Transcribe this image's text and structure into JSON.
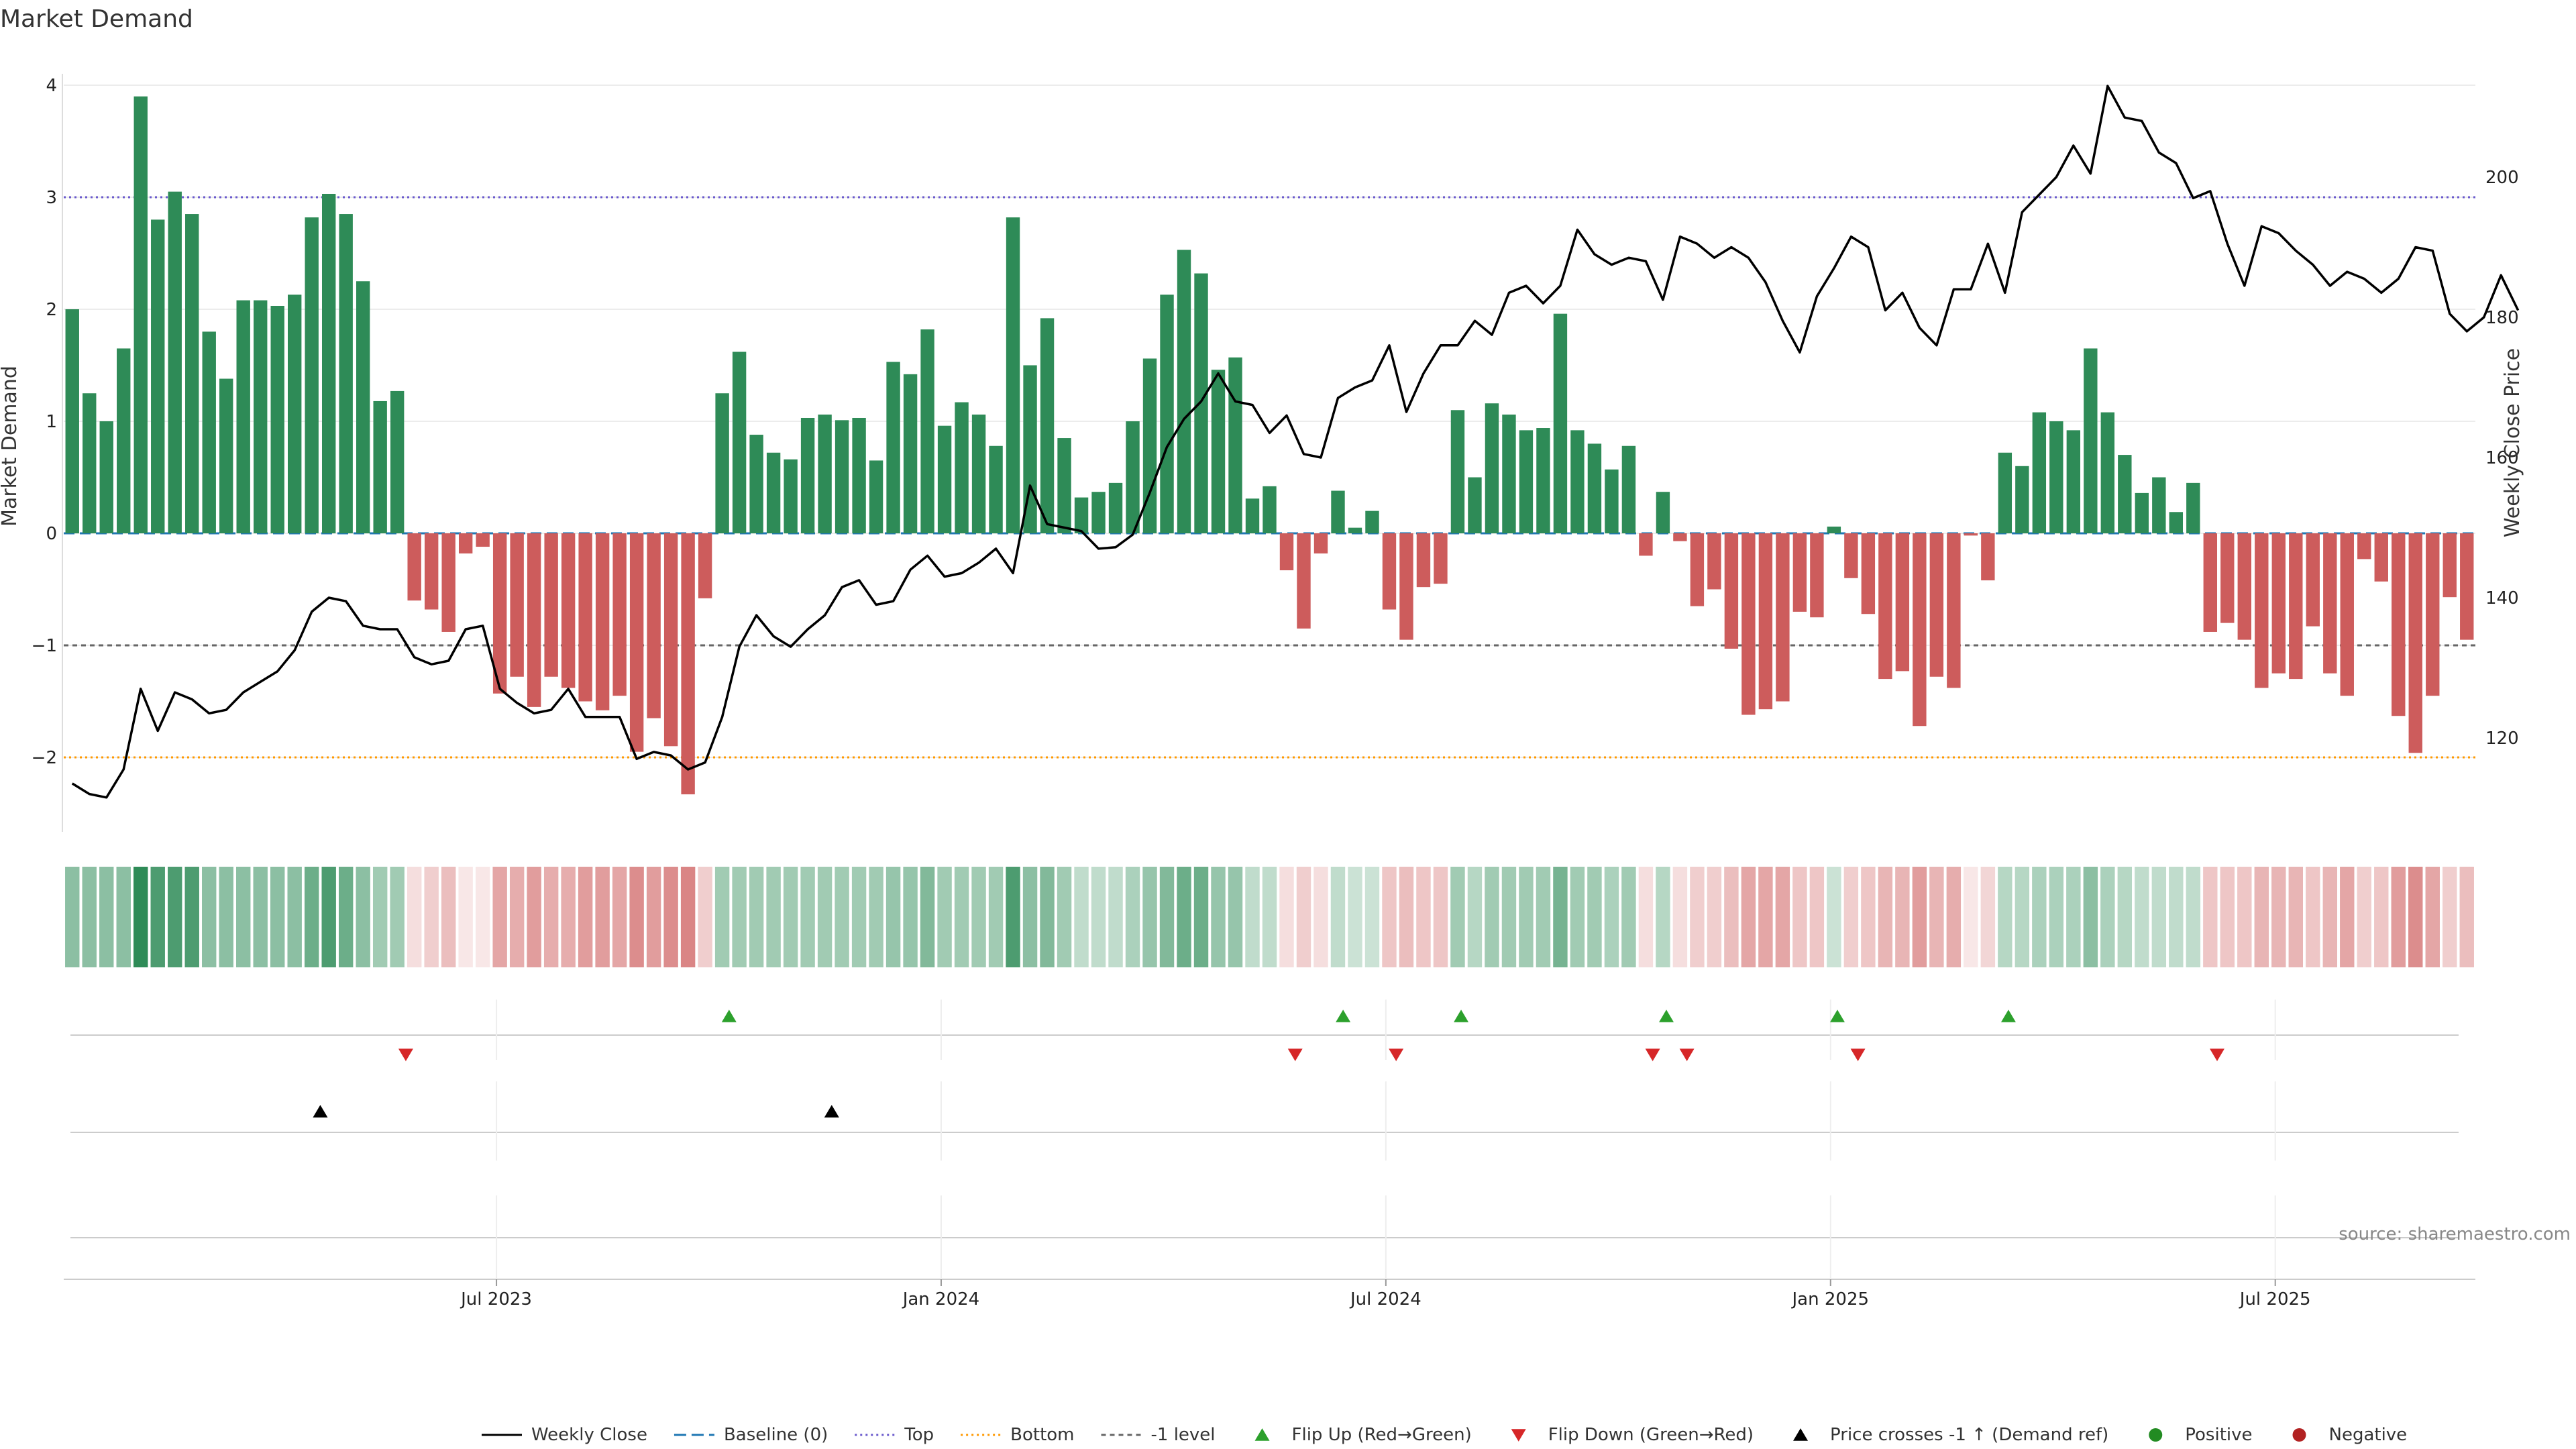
{
  "chart_data": {
    "type": "bar",
    "title": "Market Demand",
    "ylabel": "Market Demand",
    "y2label": "Weekly Close Price",
    "ylim": [
      -2.7,
      4.0
    ],
    "y2lim": [
      108,
      215
    ],
    "yticks": [
      -2,
      -1,
      0,
      1,
      2,
      3,
      4
    ],
    "yticklabels": [
      "−2",
      "−1",
      "0",
      "1",
      "2",
      "3",
      "4"
    ],
    "y2ticks": [
      120,
      140,
      160,
      180,
      200
    ],
    "y2ticklabels": [
      "120",
      "140",
      "160",
      "180",
      "200"
    ],
    "x_start_date": "2023-01-08",
    "x_end_date": "2025-10-12",
    "xticks": [
      "Jul 2023",
      "Jan 2024",
      "Jul 2024",
      "Jan 2025",
      "Jul 2025"
    ],
    "xtick_weeks": [
      25.3,
      51.3,
      77.3,
      103.3,
      129.3
    ],
    "levels": {
      "top": 3.0,
      "bottom": -2.0,
      "minus_one": -1.0,
      "baseline": 0
    },
    "colors": {
      "positive": "#2e8b57",
      "negative": "#cd5c5c",
      "price": "#000000",
      "top": "#6a5acd",
      "bottom": "#ff9900",
      "minus_one": "#666666",
      "baseline": "#1f77b4",
      "flip_up": "#2ca02c",
      "flip_down": "#d62728",
      "cross": "#000000",
      "positive_dot": "#228b22",
      "negative_dot": "#b22222"
    },
    "series": [
      {
        "name": "Market Demand",
        "values": [
          2.0,
          1.25,
          1.0,
          1.65,
          3.9,
          2.8,
          3.05,
          2.85,
          1.8,
          1.38,
          2.08,
          2.08,
          2.03,
          2.13,
          2.82,
          3.03,
          2.85,
          2.25,
          1.18,
          1.27,
          -0.6,
          -0.68,
          -0.88,
          -0.18,
          -0.12,
          -1.43,
          -1.28,
          -1.55,
          -1.28,
          -1.38,
          -1.5,
          -1.58,
          -1.45,
          -1.95,
          -1.65,
          -1.9,
          -2.33,
          -0.58,
          1.25,
          1.62,
          0.88,
          0.72,
          0.66,
          1.03,
          1.06,
          1.01,
          1.03,
          0.65,
          1.53,
          1.42,
          1.82,
          0.96,
          1.17,
          1.06,
          0.78,
          2.82,
          1.5,
          1.92,
          0.85,
          0.32,
          0.37,
          0.45,
          1.0,
          1.56,
          2.13,
          2.53,
          2.32,
          1.46,
          1.57,
          0.31,
          0.42,
          -0.33,
          -0.85,
          -0.18,
          0.38,
          0.05,
          0.2,
          -0.68,
          -0.95,
          -0.48,
          -0.45,
          1.1,
          0.5,
          1.16,
          1.06,
          0.92,
          0.94,
          1.96,
          0.92,
          0.8,
          0.57,
          0.78,
          -0.2,
          0.37,
          -0.07,
          -0.65,
          -0.5,
          -1.03,
          -1.62,
          -1.57,
          -1.5,
          -0.7,
          -0.75,
          0.06,
          -0.4,
          -0.72,
          -1.3,
          -1.23,
          -1.72,
          -1.28,
          -1.38,
          -0.02,
          -0.42,
          0.72,
          0.6,
          1.08,
          1.0,
          0.92,
          1.65,
          1.08,
          0.7,
          0.36,
          0.5,
          0.19,
          0.45,
          -0.88,
          -0.8,
          -0.95,
          -1.38,
          -1.25,
          -1.3,
          -0.83,
          -1.25,
          -1.45,
          -0.23,
          -0.43,
          -1.63,
          -1.96,
          -1.45,
          -0.57,
          -0.95
        ]
      },
      {
        "name": "Weekly Close",
        "values": [
          113.5,
          112,
          111.5,
          115.5,
          127,
          121,
          126.5,
          125.5,
          123.5,
          124,
          126.5,
          128,
          129.5,
          132.5,
          138,
          140,
          139.5,
          136,
          135.5,
          135.5,
          131.5,
          130.5,
          131,
          135.5,
          136,
          127,
          125,
          123.5,
          124,
          127,
          123,
          123,
          123,
          117,
          118,
          117.5,
          115.5,
          116.5,
          123,
          133,
          137.5,
          134.5,
          133,
          135.5,
          137.5,
          141.5,
          142.5,
          139,
          139.5,
          144,
          146,
          143,
          143.5,
          145,
          147,
          143.5,
          156,
          150.5,
          150,
          149.5,
          147,
          147.2,
          149,
          155,
          161.5,
          165.5,
          168,
          172,
          168,
          167.5,
          163.5,
          166,
          160.5,
          160,
          168.5,
          170,
          171,
          176,
          166.5,
          172,
          176,
          176,
          179.5,
          177.5,
          183.5,
          184.5,
          182,
          184.5,
          192.5,
          189,
          187.5,
          188.5,
          188,
          182.5,
          191.5,
          190.5,
          188.5,
          190,
          188.5,
          185,
          179.5,
          175,
          183,
          187,
          191.5,
          190,
          181,
          183.5,
          178.5,
          176,
          184,
          184,
          190.5,
          183.5,
          195,
          197.5,
          200,
          204.5,
          200.5,
          213,
          208.5,
          208,
          203.5,
          202,
          197,
          198,
          190.5,
          184.5,
          193,
          192,
          189.5,
          187.5,
          184.5,
          186.5,
          185.5,
          183.5,
          185.5,
          190,
          189.5,
          180.5,
          178,
          180,
          186,
          181
        ]
      }
    ],
    "strip_opacities": [
      0.55,
      0.55,
      0.55,
      0.55,
      1,
      0.85,
      0.85,
      0.85,
      0.55,
      0.55,
      0.55,
      0.55,
      0.55,
      0.55,
      0.7,
      0.85,
      0.7,
      0.55,
      0.45,
      0.45,
      0.2,
      0.3,
      0.4,
      0.15,
      0.15,
      0.55,
      0.5,
      0.6,
      0.5,
      0.5,
      0.6,
      0.6,
      0.55,
      0.7,
      0.6,
      0.7,
      0.75,
      0.3,
      0.45,
      0.45,
      0.45,
      0.45,
      0.45,
      0.45,
      0.45,
      0.45,
      0.45,
      0.45,
      0.5,
      0.5,
      0.6,
      0.45,
      0.45,
      0.45,
      0.45,
      0.85,
      0.55,
      0.6,
      0.45,
      0.3,
      0.3,
      0.3,
      0.4,
      0.5,
      0.6,
      0.7,
      0.7,
      0.5,
      0.5,
      0.3,
      0.3,
      0.2,
      0.3,
      0.2,
      0.3,
      0.25,
      0.25,
      0.35,
      0.4,
      0.35,
      0.35,
      0.45,
      0.35,
      0.45,
      0.45,
      0.45,
      0.45,
      0.65,
      0.45,
      0.45,
      0.4,
      0.45,
      0.2,
      0.35,
      0.2,
      0.3,
      0.3,
      0.4,
      0.55,
      0.55,
      0.55,
      0.35,
      0.35,
      0.25,
      0.3,
      0.35,
      0.45,
      0.45,
      0.6,
      0.45,
      0.5,
      0.15,
      0.25,
      0.35,
      0.35,
      0.4,
      0.4,
      0.4,
      0.55,
      0.4,
      0.35,
      0.3,
      0.3,
      0.3,
      0.3,
      0.35,
      0.35,
      0.35,
      0.45,
      0.45,
      0.45,
      0.35,
      0.45,
      0.55,
      0.3,
      0.35,
      0.6,
      0.7,
      0.55,
      0.3,
      0.4
    ],
    "flip_up_weeks": [
      38.9,
      74.8,
      81.7,
      93.7,
      103.7,
      113.7
    ],
    "flip_down_weeks": [
      20.0,
      72.0,
      77.9,
      92.9,
      94.9,
      104.9,
      125.9
    ],
    "cross_weeks": [
      15.0,
      44.9
    ],
    "legend": [
      {
        "key": "weekly-close",
        "label": "Weekly Close",
        "symbol": "line",
        "color": "#000000"
      },
      {
        "key": "baseline",
        "label": "Baseline (0)",
        "symbol": "dash",
        "color": "#1f77b4"
      },
      {
        "key": "top",
        "label": "Top",
        "symbol": "dot",
        "color": "#6a5acd"
      },
      {
        "key": "bottom",
        "label": "Bottom",
        "symbol": "dot",
        "color": "#ff9900"
      },
      {
        "key": "minus-one",
        "label": "-1 level",
        "symbol": "dash2",
        "color": "#666666"
      },
      {
        "key": "flip-up",
        "label": "Flip Up (Red→Green)",
        "symbol": "tri-up",
        "color": "#2ca02c"
      },
      {
        "key": "flip-down",
        "label": "Flip Down (Green→Red)",
        "symbol": "tri-down",
        "color": "#d62728"
      },
      {
        "key": "price-cross",
        "label": "Price crosses -1 ↑ (Demand ref)",
        "symbol": "tri-up",
        "color": "#000000"
      },
      {
        "key": "positive",
        "label": "Positive",
        "symbol": "circle",
        "color": "#228b22"
      },
      {
        "key": "negative",
        "label": "Negative",
        "symbol": "circle",
        "color": "#b22222"
      }
    ],
    "source": "source: sharemaestro.com",
    "grid": true,
    "legend_position": "bottom-center"
  }
}
